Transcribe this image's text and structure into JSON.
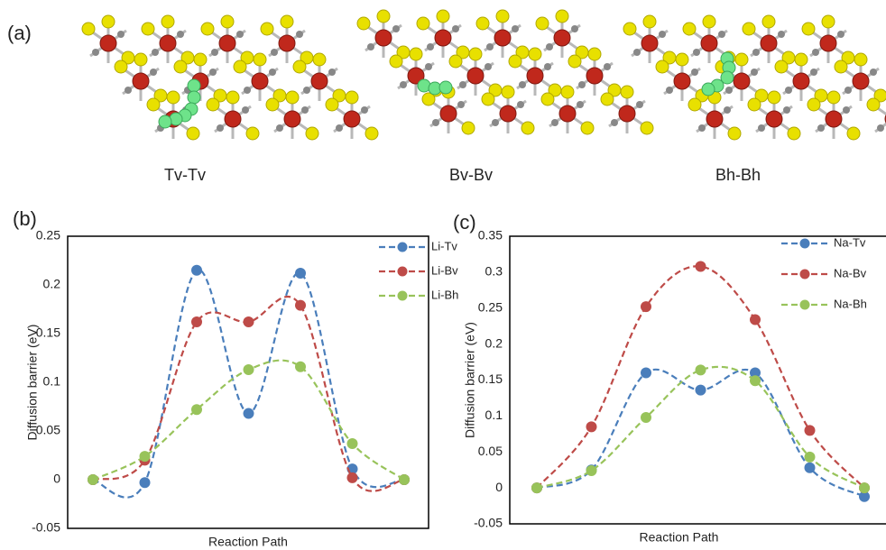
{
  "figure": {
    "panel_label": "(a)",
    "structures": [
      "Tv-Tv",
      "Bv-Bv",
      "Bh-Bh"
    ]
  },
  "chart_data": [
    {
      "type": "line",
      "panel_label": "(b)",
      "y_label": "Diffusion barrier (eV)",
      "x_label": "Reaction Path",
      "categories": [
        null,
        null,
        null,
        null,
        null,
        null,
        null
      ],
      "series": [
        {
          "name": "Li-Tv",
          "color": "#4a7ebb",
          "values": [
            0,
            -0.003,
            0.215,
            0.068,
            0.212,
            0.011,
            0
          ]
        },
        {
          "name": "Li-Bv",
          "color": "#be4b48",
          "values": [
            0,
            0.02,
            0.162,
            0.162,
            0.179,
            0.002,
            0
          ]
        },
        {
          "name": "Li-Bh",
          "color": "#98c35a",
          "values": [
            0,
            0.024,
            0.072,
            0.113,
            0.116,
            0.037,
            0
          ]
        }
      ],
      "ylim": [
        -0.05,
        0.25
      ],
      "yticks": [
        -0.05,
        0,
        0.05,
        0.1,
        0.15,
        0.2,
        0.25
      ],
      "grid": false,
      "legend": "upper right",
      "line_style": "dashed-smooth"
    },
    {
      "type": "line",
      "panel_label": "(c)",
      "y_label": "Diffusion barrier (eV)",
      "x_label": "Reaction Path",
      "categories": [
        null,
        null,
        null,
        null,
        null,
        null,
        null
      ],
      "series": [
        {
          "name": "Na-Tv",
          "color": "#4a7ebb",
          "values": [
            0,
            0.025,
            0.16,
            0.136,
            0.16,
            0.028,
            -0.012
          ]
        },
        {
          "name": "Na-Bv",
          "color": "#be4b48",
          "values": [
            0,
            0.085,
            0.252,
            0.308,
            0.234,
            0.08,
            0
          ]
        },
        {
          "name": "Na-Bh",
          "color": "#98c35a",
          "values": [
            0,
            0.024,
            0.098,
            0.164,
            0.149,
            0.043,
            0
          ]
        }
      ],
      "ylim": [
        -0.05,
        0.35
      ],
      "yticks": [
        -0.05,
        0,
        0.05,
        0.1,
        0.15,
        0.2,
        0.25,
        0.3,
        0.35
      ],
      "grid": false,
      "legend": "upper right",
      "line_style": "dashed-smooth"
    }
  ]
}
